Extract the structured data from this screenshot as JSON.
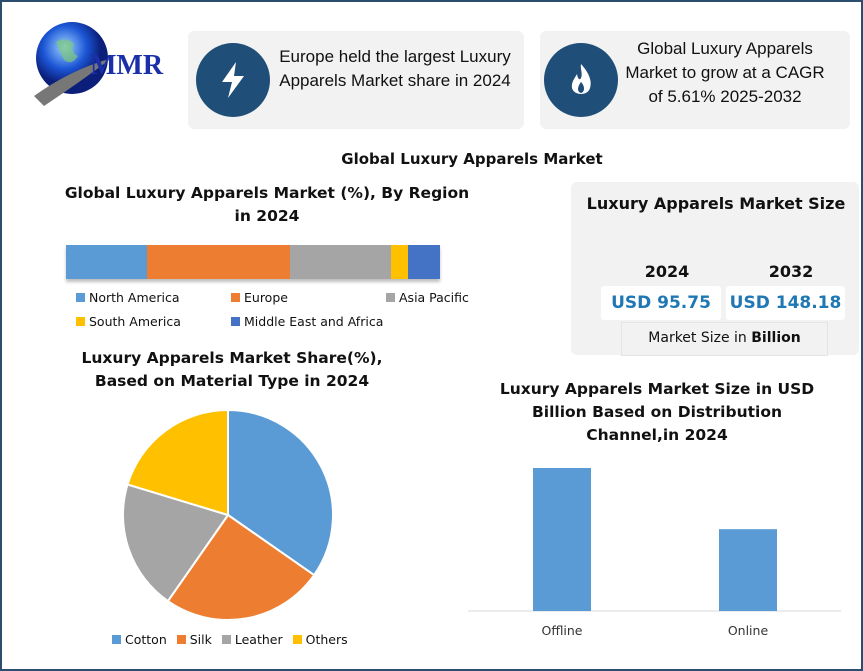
{
  "logo": {
    "text": "MMR"
  },
  "highlights": [
    {
      "icon": "lightning-icon",
      "text": "Europe held the largest Luxury Apparels Market share in 2024"
    },
    {
      "icon": "flame-icon",
      "text": "Global Luxury Apparels Market to grow at a CAGR of 5.61% 2025-2032"
    }
  ],
  "main_title": "Global Luxury Apparels Market",
  "market_size": {
    "title": "Luxury Apparels Market Size",
    "years": [
      {
        "year": "2024",
        "value": "USD 95.75"
      },
      {
        "year": "2032",
        "value": "USD 148.18"
      }
    ],
    "unit_prefix": "Market Size in ",
    "unit_bold": "Billion"
  },
  "chart_data": [
    {
      "type": "bar",
      "orientation": "horizontal-stacked-100",
      "title": "Global Luxury Apparels Market (%), By Region in 2024",
      "legend_position": "bottom",
      "series": [
        {
          "name": "North America",
          "value": 21.7,
          "color": "#5b9bd5"
        },
        {
          "name": "Europe",
          "value": 38.2,
          "color": "#ed7d31"
        },
        {
          "name": "Asia Pacific",
          "value": 27.0,
          "color": "#a5a5a5"
        },
        {
          "name": "South America",
          "value": 4.5,
          "color": "#ffc000"
        },
        {
          "name": "Middle East and Africa",
          "value": 8.6,
          "color": "#4472c4"
        }
      ]
    },
    {
      "type": "pie",
      "title": "Luxury Apparels Market  Share(%), Based on Material Type in 2024",
      "legend_position": "bottom",
      "categories": [
        "Cotton",
        "Silk",
        "Leather",
        "Others"
      ],
      "values": [
        34.7,
        25.0,
        20.0,
        20.3
      ],
      "colors": [
        "#5b9bd5",
        "#ed7d31",
        "#a5a5a5",
        "#ffc000"
      ]
    },
    {
      "type": "bar",
      "title": "Luxury Apparels Market  Size in USD Billion Based on Distribution Channel,in 2024",
      "categories": [
        "Offline",
        "Online"
      ],
      "values": [
        60.9,
        34.85
      ],
      "color": "#5b9bd5",
      "grid": false
    }
  ]
}
